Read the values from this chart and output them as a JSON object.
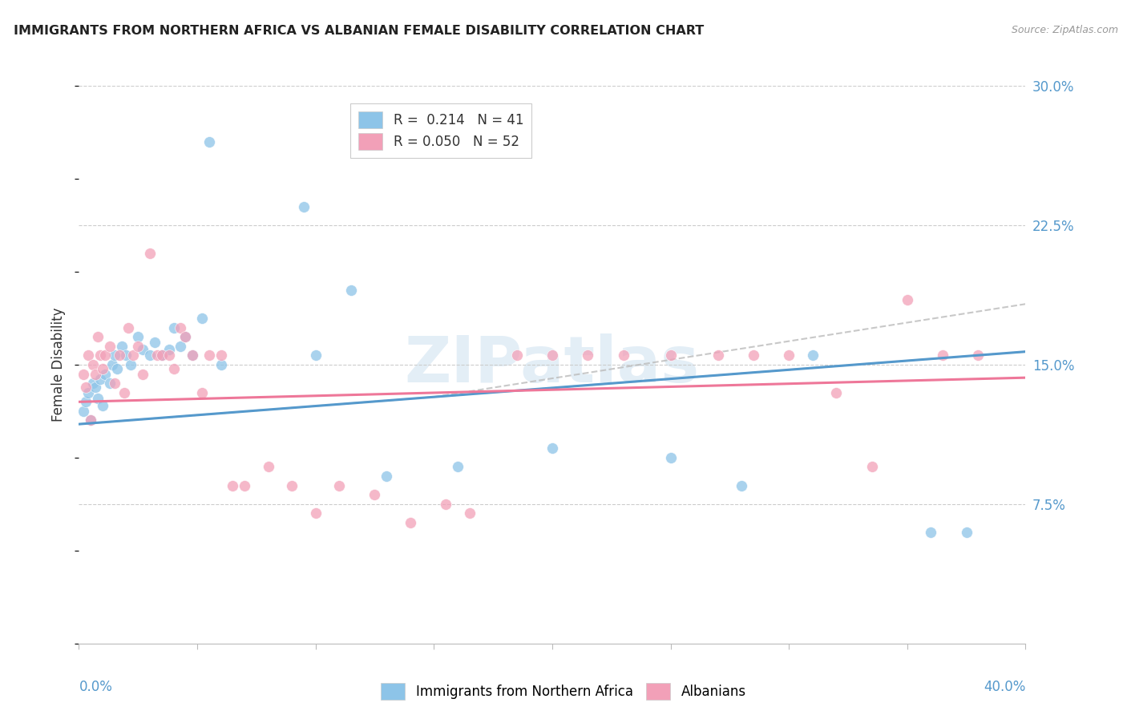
{
  "title": "IMMIGRANTS FROM NORTHERN AFRICA VS ALBANIAN FEMALE DISABILITY CORRELATION CHART",
  "source": "Source: ZipAtlas.com",
  "ylabel": "Female Disability",
  "yticks": [
    0.0,
    0.075,
    0.15,
    0.225,
    0.3
  ],
  "ytick_labels": [
    "",
    "7.5%",
    "15.0%",
    "22.5%",
    "30.0%"
  ],
  "xlim": [
    0.0,
    0.4
  ],
  "ylim": [
    0.0,
    0.3
  ],
  "watermark": "ZIPatlas",
  "color_blue": "#8dc4e8",
  "color_pink": "#f2a0b8",
  "color_line_blue": "#5599cc",
  "color_line_pink": "#ee7799",
  "color_trendline_dashed": "#bbbbbb",
  "blue_scatter_x": [
    0.002,
    0.003,
    0.004,
    0.005,
    0.006,
    0.007,
    0.008,
    0.009,
    0.01,
    0.011,
    0.013,
    0.014,
    0.015,
    0.016,
    0.018,
    0.02,
    0.022,
    0.025,
    0.027,
    0.03,
    0.032,
    0.035,
    0.038,
    0.04,
    0.043,
    0.045,
    0.048,
    0.052,
    0.055,
    0.06,
    0.095,
    0.1,
    0.115,
    0.13,
    0.16,
    0.2,
    0.25,
    0.28,
    0.31,
    0.36,
    0.375
  ],
  "blue_scatter_y": [
    0.125,
    0.13,
    0.135,
    0.12,
    0.14,
    0.138,
    0.132,
    0.142,
    0.128,
    0.145,
    0.14,
    0.15,
    0.155,
    0.148,
    0.16,
    0.155,
    0.15,
    0.165,
    0.158,
    0.155,
    0.162,
    0.155,
    0.158,
    0.17,
    0.16,
    0.165,
    0.155,
    0.175,
    0.27,
    0.15,
    0.235,
    0.155,
    0.19,
    0.09,
    0.095,
    0.105,
    0.1,
    0.085,
    0.155,
    0.06,
    0.06
  ],
  "pink_scatter_x": [
    0.002,
    0.003,
    0.004,
    0.005,
    0.006,
    0.007,
    0.008,
    0.009,
    0.01,
    0.011,
    0.013,
    0.015,
    0.017,
    0.019,
    0.021,
    0.023,
    0.025,
    0.027,
    0.03,
    0.033,
    0.035,
    0.038,
    0.04,
    0.043,
    0.045,
    0.048,
    0.052,
    0.055,
    0.06,
    0.065,
    0.07,
    0.08,
    0.09,
    0.1,
    0.11,
    0.125,
    0.14,
    0.155,
    0.165,
    0.185,
    0.2,
    0.215,
    0.23,
    0.25,
    0.27,
    0.285,
    0.3,
    0.32,
    0.335,
    0.35,
    0.365,
    0.38
  ],
  "pink_scatter_y": [
    0.145,
    0.138,
    0.155,
    0.12,
    0.15,
    0.145,
    0.165,
    0.155,
    0.148,
    0.155,
    0.16,
    0.14,
    0.155,
    0.135,
    0.17,
    0.155,
    0.16,
    0.145,
    0.21,
    0.155,
    0.155,
    0.155,
    0.148,
    0.17,
    0.165,
    0.155,
    0.135,
    0.155,
    0.155,
    0.085,
    0.085,
    0.095,
    0.085,
    0.07,
    0.085,
    0.08,
    0.065,
    0.075,
    0.07,
    0.155,
    0.155,
    0.155,
    0.155,
    0.155,
    0.155,
    0.155,
    0.155,
    0.135,
    0.095,
    0.185,
    0.155,
    0.155
  ]
}
